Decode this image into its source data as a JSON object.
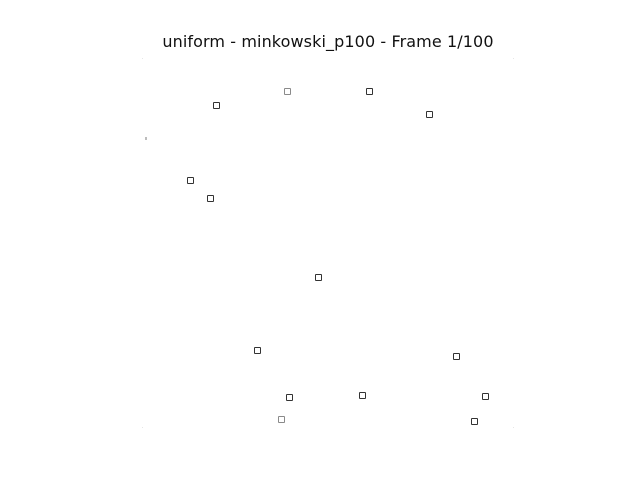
{
  "figure": {
    "title": "uniform - minkowski_p100 - Frame 1/100",
    "marker_shape": "square-outline",
    "marker_color": "#333333",
    "background_color": "#ffffff"
  }
}
